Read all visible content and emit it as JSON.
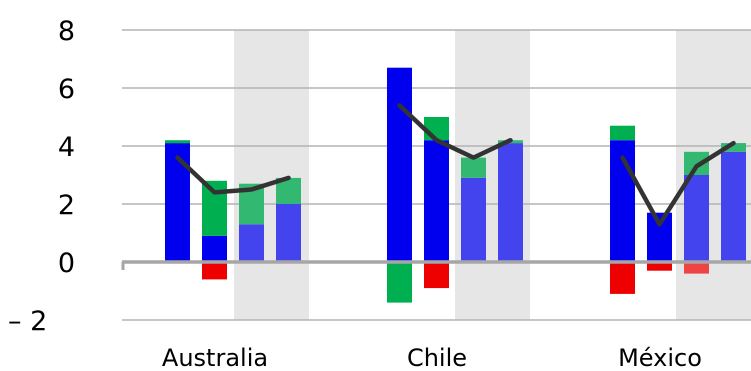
{
  "chart_data": {
    "type": "bar",
    "subtype": "stacked-bar-with-line",
    "title": "",
    "xlabel": "",
    "ylabel": "",
    "ylim": [
      -2,
      8
    ],
    "yticks": [
      8,
      6,
      4,
      2,
      0,
      -2
    ],
    "ytick_labels": [
      "8",
      "6",
      "4",
      "2",
      "0",
      "–  2"
    ],
    "grid": true,
    "legend": "none",
    "categories": [
      "Australia",
      "Chile",
      "México"
    ],
    "bars_per_category": 4,
    "shaded_bars": [
      3,
      4
    ],
    "colors": {
      "base_dark": "#0000EE",
      "base_light": "#4444EE",
      "pos_dark": "#00B050",
      "pos_light": "#33B872",
      "neg_dark": "#EE0000",
      "neg_light": "#EE4444",
      "line": "#333333",
      "shade": "#E6E6E6",
      "grid": "#B4B4B4",
      "axis": "#A6A6A6"
    },
    "groups": [
      {
        "category": "Australia",
        "bars": [
          {
            "base": 4.1,
            "pos": 0.1,
            "neg": 0
          },
          {
            "base": 0.9,
            "pos": 1.9,
            "neg": -0.6
          },
          {
            "base": 1.3,
            "pos": 1.4,
            "neg": 0
          },
          {
            "base": 2.0,
            "pos": 0.9,
            "neg": 0
          }
        ],
        "line": [
          3.6,
          2.4,
          2.5,
          2.9
        ]
      },
      {
        "category": "Chile",
        "bars": [
          {
            "base": 6.7,
            "pos": 0,
            "neg": -1.4
          },
          {
            "base": 4.2,
            "pos": 0.8,
            "neg": -0.9
          },
          {
            "base": 2.9,
            "pos": 0.7,
            "neg": 0
          },
          {
            "base": 4.1,
            "pos": 0.1,
            "neg": 0
          }
        ],
        "line": [
          5.4,
          4.2,
          3.6,
          4.2
        ]
      },
      {
        "category": "México",
        "bars": [
          {
            "base": 4.2,
            "pos": 0.5,
            "neg": -1.1
          },
          {
            "base": 1.7,
            "pos": 0,
            "neg": -0.3
          },
          {
            "base": 3.0,
            "pos": 0.8,
            "neg": -0.4
          },
          {
            "base": 3.8,
            "pos": 0.3,
            "neg": 0
          }
        ],
        "line": [
          3.6,
          1.3,
          3.3,
          4.1
        ]
      }
    ]
  }
}
